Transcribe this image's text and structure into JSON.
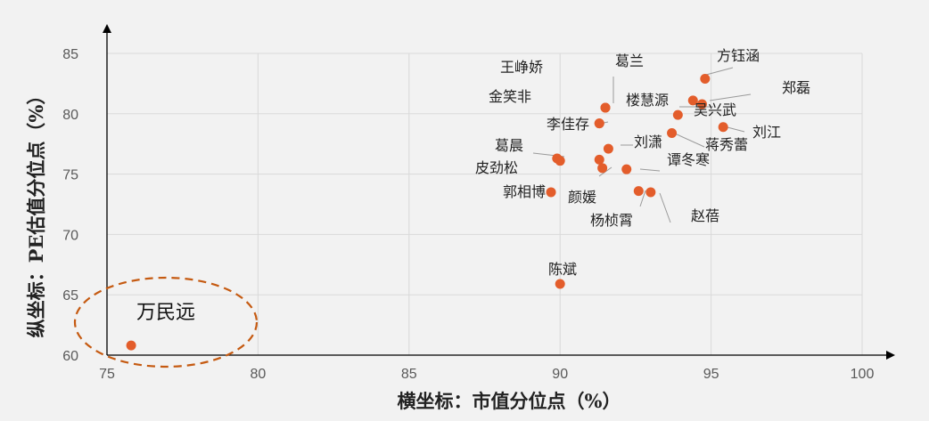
{
  "chart_data": {
    "type": "scatter",
    "xlabel": "横坐标：市值分位点（%）",
    "ylabel": "纵坐标：PE估值分位点（%）",
    "xlim": [
      75,
      100
    ],
    "ylim": [
      60,
      85
    ],
    "xticks": [
      "75",
      "80",
      "85",
      "90",
      "95",
      "100"
    ],
    "yticks": [
      "60",
      "65",
      "70",
      "75",
      "80",
      "85"
    ],
    "grid": true,
    "marker_color": "#e35d2b",
    "highlight_color": "#c55a11",
    "points": [
      {
        "name": "方钰涵",
        "x": 94.8,
        "y": 82.9
      },
      {
        "name": "郑磊",
        "x": 94.7,
        "y": 80.8
      },
      {
        "name": "吴兴武",
        "x": 94.4,
        "y": 81.1
      },
      {
        "name": "葛兰",
        "x": 91.5,
        "y": 80.5
      },
      {
        "name": "王峥娇",
        "x": 91.5,
        "y": 80.5
      },
      {
        "name": "楼慧源",
        "x": 93.9,
        "y": 79.9
      },
      {
        "name": "金笑非",
        "x": 91.3,
        "y": 79.2
      },
      {
        "name": "李佳存",
        "x": 91.3,
        "y": 79.2
      },
      {
        "name": "刘江",
        "x": 95.4,
        "y": 78.9
      },
      {
        "name": "蒋秀蕾",
        "x": 93.7,
        "y": 78.4
      },
      {
        "name": "刘潇",
        "x": 91.6,
        "y": 77.1
      },
      {
        "name": "葛晨",
        "x": 89.9,
        "y": 76.3
      },
      {
        "name": "皮劲松",
        "x": 90.0,
        "y": 76.1
      },
      {
        "name": "谭冬寒",
        "x": 91.3,
        "y": 76.2
      },
      {
        "name": "颜媛",
        "x": 91.4,
        "y": 75.5
      },
      {
        "name": "谭冬寒-2",
        "x": 92.2,
        "y": 75.4
      },
      {
        "name": "郭相博",
        "x": 89.7,
        "y": 73.5
      },
      {
        "name": "杨桢霄",
        "x": 92.6,
        "y": 73.6
      },
      {
        "name": "赵蓓",
        "x": 93.0,
        "y": 73.5
      },
      {
        "name": "陈斌",
        "x": 90.0,
        "y": 65.9
      },
      {
        "name": "万民远",
        "x": 75.8,
        "y": 60.8
      }
    ],
    "labels": [
      {
        "text": "方钰涵"
      },
      {
        "text": "郑磊"
      },
      {
        "text": "吴兴武"
      },
      {
        "text": "葛兰"
      },
      {
        "text": "王峥娇"
      },
      {
        "text": "楼慧源"
      },
      {
        "text": "金笑非"
      },
      {
        "text": "李佳存"
      },
      {
        "text": "刘江"
      },
      {
        "text": "蒋秀蕾"
      },
      {
        "text": "刘潇"
      },
      {
        "text": "葛晨"
      },
      {
        "text": "皮劲松"
      },
      {
        "text": "谭冬寒"
      },
      {
        "text": "郭相博"
      },
      {
        "text": "颜媛"
      },
      {
        "text": "杨桢霄"
      },
      {
        "text": "赵蓓"
      },
      {
        "text": "陈斌"
      },
      {
        "text": "万民远"
      }
    ]
  }
}
